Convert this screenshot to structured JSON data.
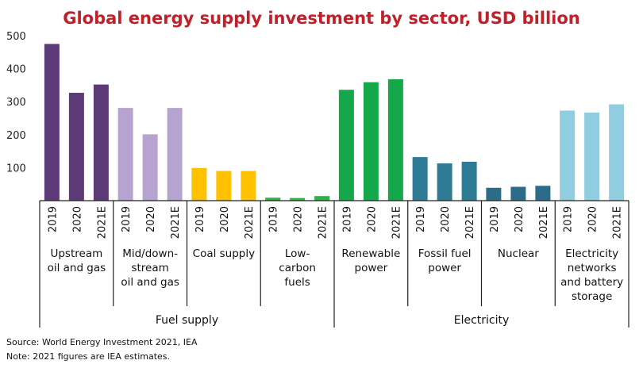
{
  "chart_data": {
    "type": "bar",
    "title": "Global energy supply investment by sector, USD billion",
    "ylim": [
      0,
      500
    ],
    "yticks": [
      "100",
      "200",
      "300",
      "400",
      "500"
    ],
    "year_labels": [
      "2019",
      "2020",
      "2021E"
    ],
    "categories": [
      {
        "label": [
          "Upstream",
          "oil and gas"
        ],
        "color": "#5c3a78",
        "values": [
          475,
          327,
          352
        ]
      },
      {
        "label": [
          "Mid/down-",
          "stream",
          "oil and gas"
        ],
        "color": "#b7a3cf",
        "values": [
          281,
          201,
          281
        ]
      },
      {
        "label": [
          "Coal supply"
        ],
        "color": "#ffc000",
        "values": [
          99,
          90,
          90
        ]
      },
      {
        "label": [
          "Low-",
          "carbon",
          "fuels"
        ],
        "color": "#2db34a",
        "values": [
          9,
          8,
          14
        ]
      },
      {
        "label": [
          "Renewable",
          "power"
        ],
        "color": "#14a84a",
        "values": [
          336,
          359,
          368
        ]
      },
      {
        "label": [
          "Fossil fuel",
          "power"
        ],
        "color": "#2f7b96",
        "values": [
          132,
          113,
          118
        ]
      },
      {
        "label": [
          "Nuclear"
        ],
        "color": "#2c6c89",
        "values": [
          39,
          42,
          45
        ]
      },
      {
        "label": [
          "Electricity",
          "networks",
          "and battery",
          "storage"
        ],
        "color": "#91cde0",
        "values": [
          273,
          267,
          292
        ]
      }
    ],
    "groups": [
      {
        "label": "Fuel supply",
        "span": [
          0,
          3
        ]
      },
      {
        "label": "Electricity",
        "span": [
          4,
          7
        ]
      }
    ]
  },
  "footnotes": {
    "source": "Source: World Energy Investment 2021, IEA",
    "note": "Note: 2021 figures are IEA estimates."
  }
}
